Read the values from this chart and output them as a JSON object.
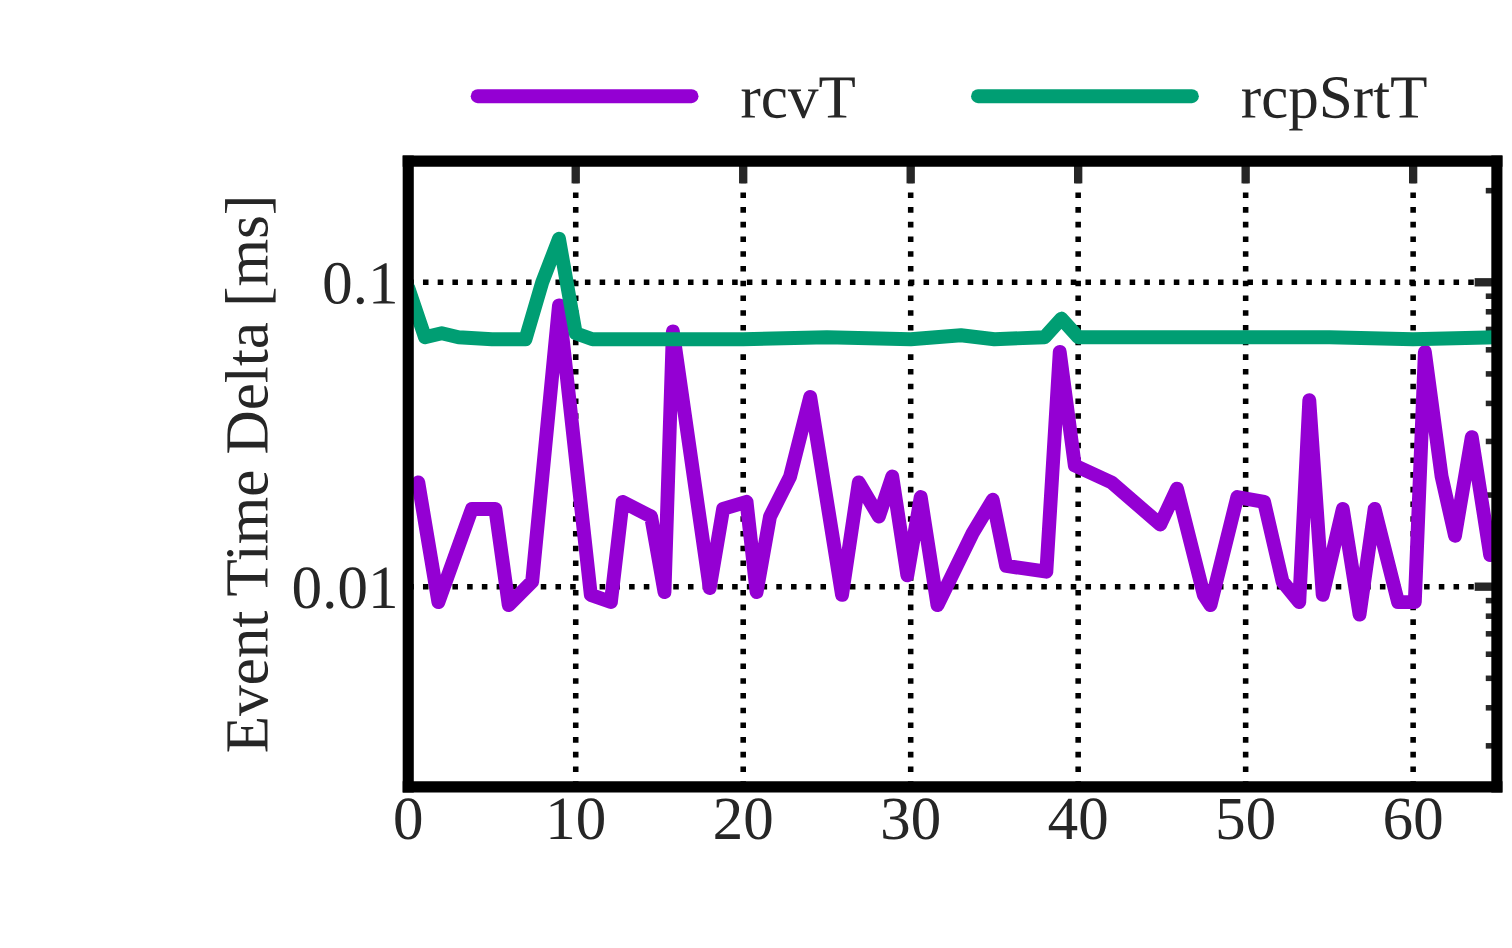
{
  "chart_data": {
    "type": "line",
    "ylabel": "Event Time Delta [ms]",
    "log": "y",
    "grid": true,
    "legend": "top",
    "line_style": "solid",
    "marker": "none",
    "xlim": [
      0,
      65
    ],
    "xticks": [
      0,
      10,
      20,
      30,
      40,
      50,
      60
    ],
    "ylim": [
      0.0022,
      0.25
    ],
    "yticks": [
      0.01,
      0.1
    ],
    "series": [
      {
        "name": "rcvT",
        "color": "#9400d3",
        "x": [
          0.6,
          1.8,
          3.8,
          5.2,
          6.0,
          7.4,
          9.0,
          10.9,
          12.1,
          12.8,
          14.5,
          15.3,
          15.8,
          18.0,
          18.8,
          20.2,
          20.8,
          21.6,
          22.8,
          24.0,
          25.9,
          26.9,
          28.1,
          28.9,
          29.8,
          30.6,
          31.6,
          33.7,
          34.9,
          35.7,
          38.1,
          38.9,
          39.8,
          42.0,
          44.9,
          45.9,
          47.5,
          47.9,
          49.5,
          51.1,
          52.2,
          53.2,
          53.8,
          54.6,
          55.8,
          56.8,
          57.7,
          59.1,
          60.1,
          60.7,
          61.7,
          62.5,
          63.5,
          64.6
        ],
        "values": [
          0.022,
          0.0089,
          0.018,
          0.018,
          0.0087,
          0.0104,
          0.084,
          0.0094,
          0.0089,
          0.019,
          0.017,
          0.0096,
          0.069,
          0.0099,
          0.018,
          0.019,
          0.0096,
          0.017,
          0.023,
          0.042,
          0.0094,
          0.022,
          0.017,
          0.023,
          0.0109,
          0.0197,
          0.0087,
          0.015,
          0.0193,
          0.0117,
          0.0112,
          0.059,
          0.025,
          0.022,
          0.016,
          0.021,
          0.0094,
          0.0087,
          0.0197,
          0.019,
          0.0104,
          0.0089,
          0.041,
          0.0094,
          0.018,
          0.0081,
          0.018,
          0.0089,
          0.0089,
          0.059,
          0.023,
          0.0147,
          0.031,
          0.0127
        ]
      },
      {
        "name": "rcpSrtT",
        "color": "#009e73",
        "x": [
          0,
          1,
          2,
          3,
          5,
          7,
          8,
          9,
          10,
          11,
          15,
          20,
          25,
          30,
          33,
          35,
          38,
          39,
          40,
          45,
          50,
          55,
          60,
          65
        ],
        "values": [
          0.096,
          0.066,
          0.068,
          0.066,
          0.065,
          0.065,
          0.1,
          0.139,
          0.068,
          0.065,
          0.065,
          0.065,
          0.066,
          0.065,
          0.067,
          0.065,
          0.066,
          0.076,
          0.066,
          0.066,
          0.066,
          0.066,
          0.065,
          0.066
        ]
      }
    ]
  }
}
